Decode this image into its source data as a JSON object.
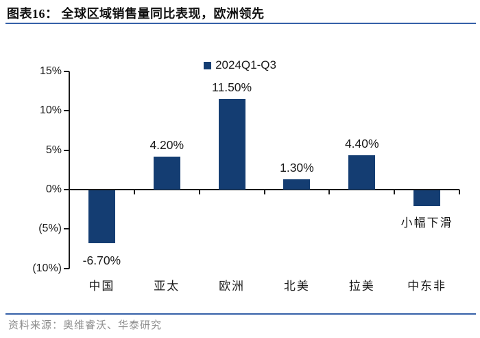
{
  "header": {
    "title": "图表16：  全球区域销售量同比表现，欧洲领先"
  },
  "footer": {
    "source": "资料来源：奥维睿沃、华泰研究"
  },
  "colors": {
    "bar": "#143D72",
    "rule_blue": "#3560A8",
    "axis": "#1a1a1a"
  },
  "chart_data": {
    "type": "bar",
    "title": "图表16：  全球区域销售量同比表现，欧洲领先",
    "legend": [
      "2024Q1-Q3"
    ],
    "legend_position": "top-center",
    "categories": [
      "中国",
      "亚太",
      "欧洲",
      "北美",
      "拉美",
      "中东非"
    ],
    "series": [
      {
        "name": "2024Q1-Q3",
        "values": [
          -6.7,
          4.2,
          11.5,
          1.3,
          4.4,
          -2
        ]
      }
    ],
    "value_labels": [
      "-6.70%",
      "4.20%",
      "11.50%",
      "1.30%",
      "4.40%",
      "小幅下滑"
    ],
    "annotations": [
      {
        "text": "小幅下滑",
        "category": "中东非",
        "meaning": "slight decline, no numeric label shown"
      }
    ],
    "ylim": [
      -10,
      15
    ],
    "ytick_step": 5,
    "yticks": [
      15,
      10,
      5,
      0,
      -5,
      -10
    ],
    "ytick_labels": [
      "15%",
      "10%",
      "5%",
      "0%",
      "(5%)",
      "(10%)"
    ],
    "grid": false,
    "unit": "percent"
  }
}
